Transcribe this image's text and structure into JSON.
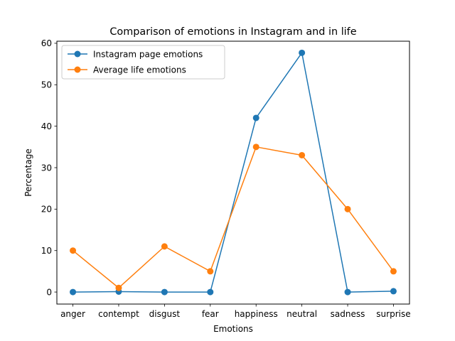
{
  "chart_data": {
    "type": "line",
    "title": "Comparison of emotions in Instagram and in life",
    "xlabel": "Emotions",
    "ylabel": "Percentage",
    "categories": [
      "anger",
      "contempt",
      "disgust",
      "fear",
      "happiness",
      "neutral",
      "sadness",
      "surprise"
    ],
    "ylim": [
      -2.9,
      60.5
    ],
    "yticks": [
      0,
      10,
      20,
      30,
      40,
      50,
      60
    ],
    "grid": false,
    "legend": "upper left",
    "series": [
      {
        "name": "Instagram page emotions",
        "color": "#1f77b4",
        "marker": "circle",
        "values": [
          0.0,
          0.1,
          0.0,
          0.0,
          42.0,
          57.7,
          0.0,
          0.2
        ]
      },
      {
        "name": "Average life emotions",
        "color": "#ff7f0e",
        "marker": "circle",
        "values": [
          10,
          1,
          11,
          5,
          35,
          33,
          20,
          5
        ]
      }
    ]
  }
}
